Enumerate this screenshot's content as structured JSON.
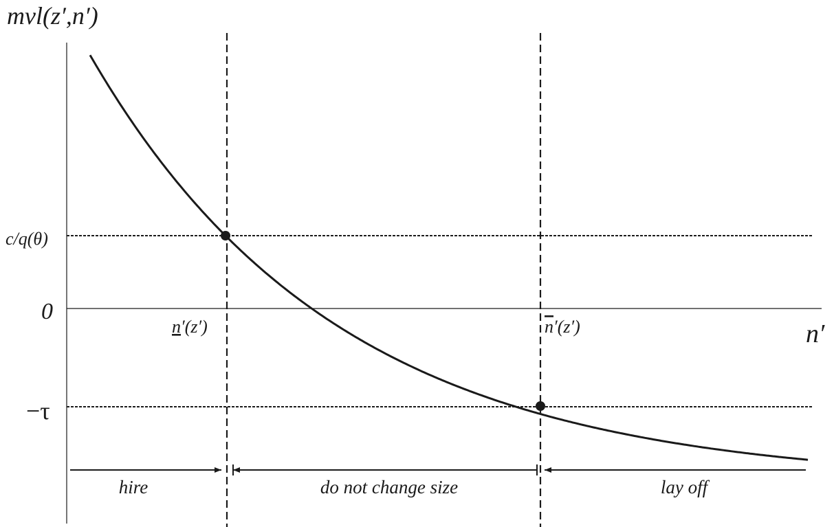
{
  "axes": {
    "y_label": "mvl(z′,n′)",
    "x_label": "n′",
    "zero_label": "0"
  },
  "levels": {
    "upper": "c/q(θ)",
    "lower": "−τ"
  },
  "thresholds": {
    "lower": {
      "letter": "n",
      "suffix": "′(z′)"
    },
    "upper": {
      "letter": "n",
      "suffix": "′(z′)"
    }
  },
  "regions": {
    "hire": "hire",
    "hold": "do not change size",
    "fire": "lay off"
  },
  "colors": {
    "ink": "#1a1a1a",
    "background": "#ffffff"
  }
}
